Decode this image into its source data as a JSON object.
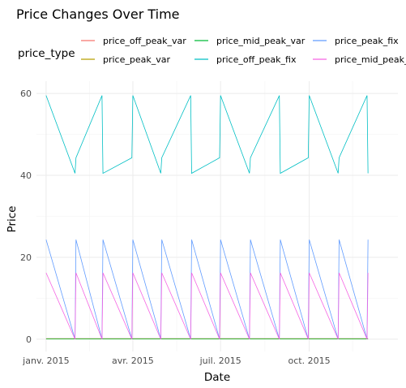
{
  "chart_data": {
    "type": "line",
    "title": "Price Changes Over Time",
    "xlabel": "Date",
    "ylabel": "Price",
    "legend": {
      "title": "price_type",
      "placement": "top"
    },
    "x_ticks": [
      "janv. 2015",
      "avr. 2015",
      "juil. 2015",
      "oct. 2015"
    ],
    "x_tick_dates": [
      "2015-01-01",
      "2015-04-01",
      "2015-07-01",
      "2015-10-01"
    ],
    "x_range": [
      "2014-12-22",
      "2016-01-01"
    ],
    "ylim": [
      -3,
      63
    ],
    "y_ticks": [
      0,
      20,
      40,
      60
    ],
    "grid": true,
    "x": [
      "2015-01-01",
      "2015-01-31",
      "2015-02-01",
      "2015-02-28",
      "2015-03-01",
      "2015-03-31",
      "2015-04-01",
      "2015-04-30",
      "2015-05-01",
      "2015-05-31",
      "2015-06-01",
      "2015-06-30",
      "2015-07-01",
      "2015-07-31",
      "2015-08-01",
      "2015-08-31",
      "2015-09-01",
      "2015-09-30",
      "2015-10-01",
      "2015-10-31",
      "2015-11-01",
      "2015-11-30",
      "2015-12-01"
    ],
    "series": [
      {
        "name": "price_off_peak_var",
        "color": "#F8766D",
        "values": [
          0.15,
          0.14,
          0.15,
          0.14,
          0.15,
          0.14,
          0.15,
          0.14,
          0.15,
          0.14,
          0.15,
          0.14,
          0.15,
          0.14,
          0.15,
          0.14,
          0.15,
          0.14,
          0.15,
          0.14,
          0.15,
          0.14,
          0.15
        ]
      },
      {
        "name": "price_peak_var",
        "color": "#B79F00",
        "values": [
          0.1,
          0.09,
          0.1,
          0.09,
          0.1,
          0.09,
          0.1,
          0.09,
          0.1,
          0.09,
          0.1,
          0.09,
          0.1,
          0.09,
          0.1,
          0.09,
          0.1,
          0.09,
          0.1,
          0.09,
          0.1,
          0.09,
          0.1
        ]
      },
      {
        "name": "price_mid_peak_var",
        "color": "#00BA38",
        "values": [
          0.07,
          0.07,
          0.07,
          0.07,
          0.07,
          0.07,
          0.07,
          0.07,
          0.07,
          0.07,
          0.07,
          0.07,
          0.07,
          0.07,
          0.07,
          0.07,
          0.07,
          0.07,
          0.07,
          0.07,
          0.07,
          0.07,
          0.07
        ]
      },
      {
        "name": "price_off_peak_fix",
        "color": "#00BFC4",
        "values": [
          59.5,
          40.5,
          44.3,
          59.5,
          40.5,
          44.3,
          59.5,
          40.5,
          44.3,
          59.5,
          40.5,
          44.3,
          59.5,
          40.5,
          44.3,
          59.5,
          40.5,
          44.3,
          59.5,
          40.5,
          44.3,
          59.5,
          40.5
        ]
      },
      {
        "name": "price_peak_fix",
        "color": "#619CFF",
        "values": [
          24.3,
          0,
          24.3,
          0,
          24.3,
          0,
          24.3,
          0,
          24.3,
          0,
          24.3,
          0,
          24.3,
          0,
          24.3,
          0,
          24.3,
          0,
          24.3,
          0,
          24.3,
          0,
          24.3
        ]
      },
      {
        "name": "price_mid_peak_fix",
        "color": "#F564E3",
        "values": [
          16.2,
          0,
          16.2,
          0,
          16.2,
          0,
          16.2,
          0,
          16.2,
          0,
          16.2,
          0,
          16.2,
          0,
          16.2,
          0,
          16.2,
          0,
          16.2,
          0,
          16.2,
          0,
          16.2
        ]
      }
    ]
  }
}
